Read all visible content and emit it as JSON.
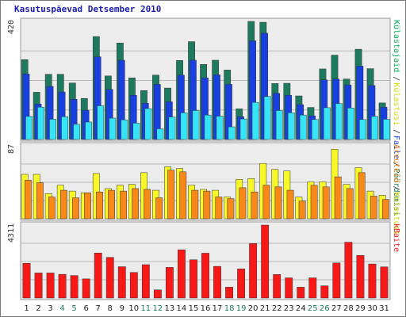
{
  "chart_data": {
    "type": "bar",
    "title": "Kasutuspäevad Detsember 2010",
    "categories": [
      "1",
      "2",
      "3",
      "4",
      "5",
      "6",
      "7",
      "8",
      "9",
      "10",
      "11",
      "12",
      "13",
      "14",
      "15",
      "16",
      "17",
      "18",
      "19",
      "20",
      "21",
      "22",
      "23",
      "24",
      "25",
      "26",
      "27",
      "28",
      "29",
      "30",
      "31"
    ],
    "weekend_days": [
      "4",
      "5",
      "11",
      "12",
      "18",
      "19",
      "25",
      "26"
    ],
    "panels": [
      {
        "ymax_label": "420",
        "ymax": 420,
        "right_labels": [
          "Külastajaid",
          "Külastusi",
          "Faile",
          "Pöördumisi"
        ],
        "series": [
          {
            "name": "Pöördumisi",
            "color": "#1e7a5e",
            "values": [
              284,
              168,
              232,
              232,
              201,
              146,
              366,
              226,
              343,
              219,
              174,
              229,
              183,
              281,
              348,
              267,
              282,
              247,
              109,
              420,
              417,
              199,
              200,
              155,
              114,
              251,
              300,
              215,
              321,
              252,
              130
            ]
          },
          {
            "name": "Faile",
            "color": "#1840e0",
            "values": [
              233,
              126,
              189,
              169,
              143,
              104,
              294,
              178,
              282,
              157,
              129,
              196,
              134,
              229,
              282,
              219,
              230,
              196,
              81,
              351,
              378,
              164,
              157,
              124,
              84,
              212,
              215,
              194,
              261,
              192,
              115
            ]
          },
          {
            "name": "Külastusi",
            "color": "#2ad8f8",
            "values": [
              0,
              0,
              0,
              0,
              0,
              0,
              0,
              0,
              0,
              0,
              0,
              0,
              0,
              0,
              0,
              0,
              0,
              0,
              0,
              0,
              0,
              0,
              0,
              0,
              0,
              0,
              0,
              0,
              0,
              0,
              0
            ]
          },
          {
            "name": "Külastajaid",
            "color": "#36e4f8",
            "values": [
              82,
              115,
              72,
              81,
              54,
              62,
              120,
              76,
              70,
              58,
              110,
              38,
              80,
              95,
              103,
              87,
              83,
              45,
              73,
              132,
              153,
              103,
              95,
              87,
              71,
              113,
              128,
              112,
              71,
              82,
              72
            ]
          }
        ]
      },
      {
        "ymax_label": "87",
        "ymax": 87,
        "right_labels": [
          "Arvuteid",
          "Külastusi"
        ],
        "series": [
          {
            "name": "Külastusi",
            "color": "#f8f828",
            "values": [
              53,
              53,
              30,
              40,
              33,
              31,
              54,
              36,
              40,
              41,
              55,
              34,
              62,
              60,
              40,
              35,
              34,
              26,
              47,
              48,
              66,
              59,
              57,
              26,
              44,
              44,
              83,
              41,
              61,
              33,
              28
            ]
          },
          {
            "name": "Arvuteid",
            "color": "#f88818",
            "values": [
              46,
              43,
              26,
              34,
              25,
              31,
              32,
              34,
              33,
              36,
              35,
              25,
              58,
              56,
              34,
              33,
              26,
              24,
              37,
              32,
              40,
              38,
              34,
              21,
              40,
              38,
              50,
              36,
              55,
              27,
              23
            ]
          }
        ]
      },
      {
        "ymax_label": "4311",
        "ymax": 4311,
        "right_labels": [
          "kBaite"
        ],
        "series": [
          {
            "name": "kBaite",
            "color": "#f81818",
            "values": [
              2050,
              1480,
              1480,
              1400,
              1330,
              1130,
              2660,
              2400,
              1850,
              1510,
              1970,
              480,
              1810,
              2850,
              2260,
              2650,
              1870,
              640,
              1720,
              3220,
              4311,
              1390,
              1190,
              640,
              1190,
              720,
              2070,
              3300,
              2520,
              2010,
              1840
            ]
          }
        ]
      }
    ]
  }
}
